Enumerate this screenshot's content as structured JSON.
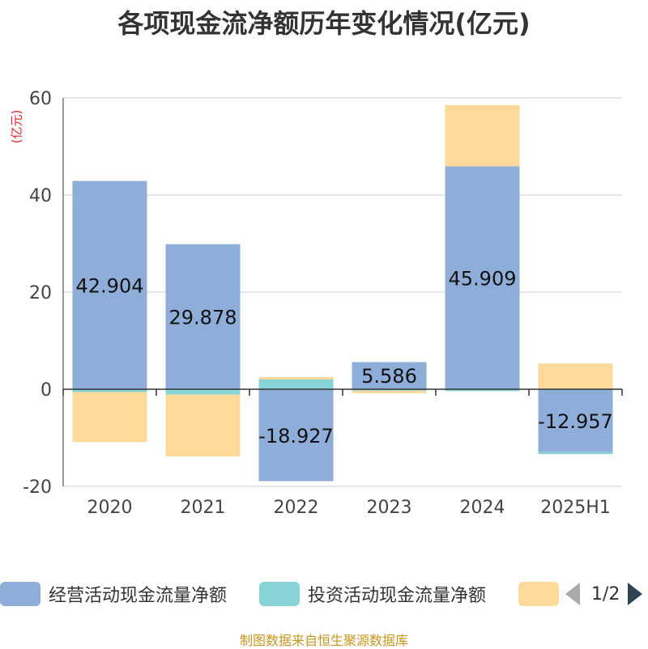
{
  "title": "各项现金流净额历年变化情况(亿元)",
  "unit_label": "(亿元)",
  "legend": {
    "items": [
      {
        "label": "经营活动现金流量净额",
        "color": "#8eaed9"
      },
      {
        "label": "投资活动现金流量净额",
        "color": "#87d4d6"
      },
      {
        "label": "",
        "color": "#fdd99a"
      }
    ],
    "page": "1/2"
  },
  "source": "制图数据来自恒生聚源数据库",
  "chart_data": {
    "type": "bar",
    "stacked": true,
    "categories": [
      "2020",
      "2021",
      "2022",
      "2023",
      "2024",
      "2025H1"
    ],
    "ylim": [
      -20,
      60
    ],
    "yticks": [
      -20,
      0,
      20,
      40,
      60
    ],
    "grid": true,
    "series": [
      {
        "name": "经营活动现金流量净额",
        "color": "#8eaed9",
        "values": [
          42.904,
          29.878,
          -18.927,
          5.586,
          45.909,
          -12.957
        ],
        "show_labels": true
      },
      {
        "name": "投资活动现金流量净额",
        "color": "#87d4d6",
        "values": [
          -0.6,
          -1.1,
          2.0,
          -0.3,
          -0.4,
          -0.4
        ],
        "show_labels": false
      },
      {
        "color": "#fdd99a",
        "values": [
          -10.3,
          -12.7,
          0.5,
          -0.5,
          12.6,
          5.3
        ],
        "show_labels": false
      }
    ]
  }
}
